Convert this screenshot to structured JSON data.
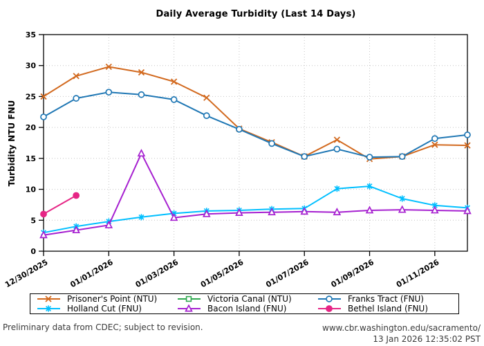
{
  "title": "Daily Average Turbidity (Last 14 Days)",
  "footer": {
    "left": "Preliminary data from CDEC; subject to revision.",
    "right_line1": "www.cbr.washington.edu/sacramento/",
    "right_line2": "13 Jan 2026 12:35:02 PST"
  },
  "chart_data": {
    "type": "line",
    "title": "Daily Average Turbidity (Last 14 Days)",
    "xlabel": "",
    "ylabel": "Turbidity NTU FNU",
    "ylim": [
      0,
      35
    ],
    "ytick_step": 5,
    "grid": "dotted",
    "legend_position": "bottom-box",
    "x_dates": [
      "12/30/2025",
      "12/31/2025",
      "01/01/2026",
      "01/02/2026",
      "01/03/2026",
      "01/04/2026",
      "01/05/2026",
      "01/06/2026",
      "01/07/2026",
      "01/08/2026",
      "01/09/2026",
      "01/10/2026",
      "01/11/2026",
      "01/12/2026"
    ],
    "xtick_label_indices": [
      0,
      2,
      4,
      6,
      8,
      10,
      12
    ],
    "series": [
      {
        "name": "Prisoner's Point (NTU)",
        "color": "#d2691e",
        "marker": "x",
        "values": [
          25.0,
          28.3,
          29.8,
          28.9,
          27.4,
          24.8,
          19.8,
          17.6,
          15.3,
          18.0,
          14.9,
          15.3,
          17.2,
          17.1
        ]
      },
      {
        "name": "Victoria Canal (NTU)",
        "color": "#2fa84f",
        "marker": "square",
        "values": [
          null,
          null,
          null,
          null,
          null,
          null,
          null,
          null,
          null,
          null,
          null,
          null,
          null,
          null
        ]
      },
      {
        "name": "Franks Tract (FNU)",
        "color": "#1f77b4",
        "marker": "circle",
        "values": [
          21.7,
          24.7,
          25.7,
          25.3,
          24.5,
          21.9,
          19.7,
          17.4,
          15.3,
          16.5,
          15.2,
          15.3,
          18.2,
          18.8
        ]
      },
      {
        "name": "Holland Cut (FNU)",
        "color": "#00bfff",
        "marker": "asterisk",
        "values": [
          3.0,
          4.0,
          4.8,
          5.5,
          6.1,
          6.5,
          6.6,
          6.8,
          6.9,
          10.1,
          10.5,
          8.5,
          7.4,
          7.0
        ]
      },
      {
        "name": "Bacon Island (FNU)",
        "color": "#a620d0",
        "marker": "triangle",
        "values": [
          2.6,
          3.4,
          4.2,
          15.8,
          5.4,
          6.0,
          6.2,
          6.3,
          6.4,
          6.3,
          6.6,
          6.7,
          6.6,
          6.5
        ]
      },
      {
        "name": "Bethel Island (FNU)",
        "color": "#e62585",
        "marker": "dot",
        "values": [
          6.0,
          9.0,
          null,
          null,
          null,
          null,
          null,
          null,
          null,
          null,
          null,
          null,
          null,
          null
        ]
      }
    ]
  }
}
